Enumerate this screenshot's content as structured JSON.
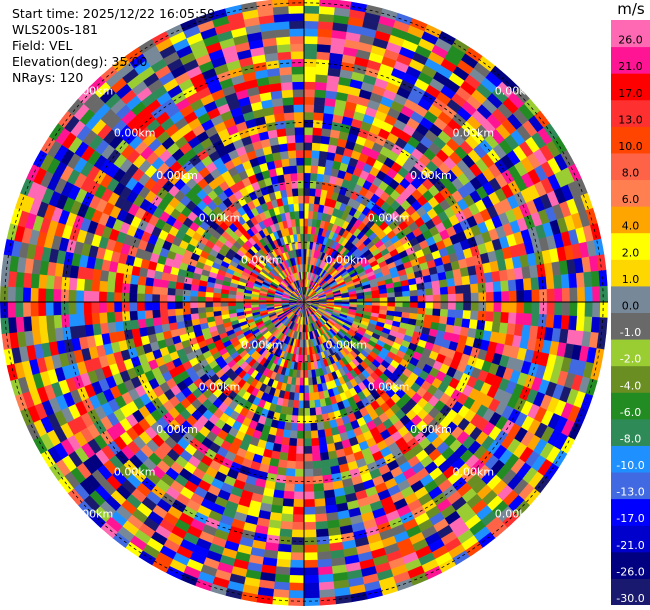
{
  "info": {
    "start_time": "Start time: 2025/12/22 16:05:59",
    "instrument": "WLS200s-181",
    "field": "Field: VEL",
    "elevation": "Elevation(deg): 35.00",
    "nrays": "NRays: 120"
  },
  "chart_data": {
    "type": "heatmap",
    "projection": "polar-ppi",
    "field": "VEL",
    "elevation_deg": 35.0,
    "nrays": 120,
    "range_rings_km": [
      1,
      2,
      3,
      4,
      5
    ],
    "ring_label_text": "0.00km",
    "colorbar": {
      "unit": "m/s",
      "levels": [
        -30.0,
        -26.0,
        -21.0,
        -17.0,
        -13.0,
        -10.0,
        -8.0,
        -6.0,
        -4.0,
        -2.0,
        -1.0,
        0.0,
        1.0,
        2.0,
        4.0,
        6.0,
        8.0,
        10.0,
        13.0,
        17.0,
        21.0,
        26.0
      ],
      "colors": [
        "#191970",
        "#000080",
        "#0000cd",
        "#0000ff",
        "#4169e1",
        "#1e90ff",
        "#2e8b57",
        "#228b22",
        "#6b8e23",
        "#9acd32",
        "#696969",
        "#778899",
        "#ffd700",
        "#ffff00",
        "#ffa500",
        "#ff7f50",
        "#ff6347",
        "#ff4500",
        "#ff3030",
        "#ff0000",
        "#ff1493",
        "#ff69b4"
      ]
    }
  }
}
